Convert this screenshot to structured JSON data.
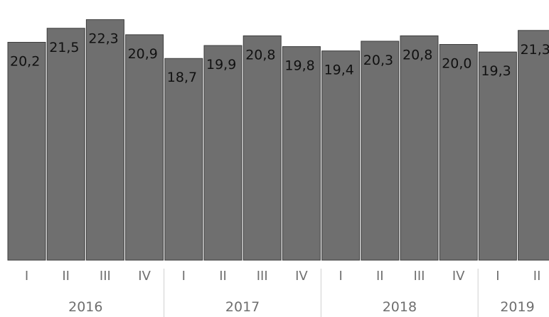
{
  "chart_data": {
    "type": "bar",
    "categories": [
      "I",
      "II",
      "III",
      "IV",
      "I",
      "II",
      "III",
      "IV",
      "I",
      "II",
      "III",
      "IV",
      "I",
      "II"
    ],
    "values": [
      20.2,
      21.5,
      22.3,
      20.9,
      18.7,
      19.9,
      20.8,
      19.8,
      19.4,
      20.3,
      20.8,
      20.0,
      19.3,
      21.3
    ],
    "value_labels": [
      "20,2",
      "21,5",
      "22,3",
      "20,9",
      "18,7",
      "19,9",
      "20,8",
      "19,8",
      "19,4",
      "20,3",
      "20,8",
      "20,0",
      "19,3",
      "21,3"
    ],
    "years": [
      "2016",
      "2017",
      "2018",
      "2019"
    ],
    "year_groups": [
      {
        "label": "2016",
        "start": 0,
        "end": 3
      },
      {
        "label": "2017",
        "start": 4,
        "end": 7
      },
      {
        "label": "2018",
        "start": 8,
        "end": 11
      },
      {
        "label": "2019",
        "start": 12,
        "end": 13
      }
    ],
    "title": "",
    "xlabel": "",
    "ylabel": "",
    "ylim": [
      0,
      23
    ],
    "grid": false,
    "legend": "none",
    "colors": {
      "bar": "#6f6f6f",
      "bar_edge": "#3d3d3d",
      "separator": "#cfcfcf",
      "text_dark": "#111111",
      "text_muted": "#6f6f6f"
    }
  }
}
